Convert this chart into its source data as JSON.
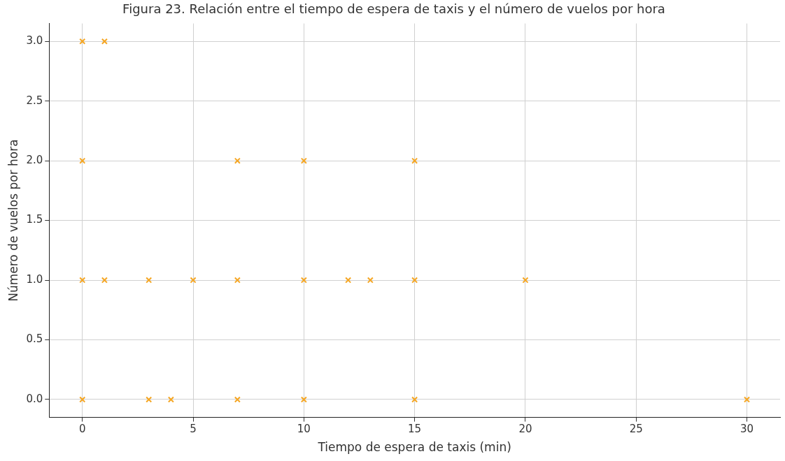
{
  "chart_data": {
    "type": "scatter",
    "title": "Figura 23. Relación entre el tiempo de espera de taxis y el número de vuelos por hora",
    "xlabel": "Tiempo de espera de taxis (min)",
    "ylabel": "Número de vuelos por hora",
    "x": [
      0,
      1,
      0,
      7,
      10,
      15,
      0,
      1,
      3,
      5,
      7,
      10,
      12,
      13,
      15,
      20,
      0,
      3,
      4,
      7,
      10,
      15,
      30
    ],
    "series": [
      {
        "color": "#f5a623",
        "values": [
          3,
          3,
          2,
          2,
          2,
          2,
          1,
          1,
          1,
          1,
          1,
          1,
          1,
          1,
          1,
          1,
          0,
          0,
          0,
          0,
          0,
          0,
          0
        ]
      }
    ],
    "xlim": [
      -1.5,
      31.5
    ],
    "xticks": [
      0,
      5,
      10,
      15,
      20,
      25,
      30
    ],
    "ylim": [
      -0.15,
      3.15
    ],
    "yticks": [
      {
        "value": 0,
        "label": "0.0"
      },
      {
        "value": 0.5,
        "label": "0.5"
      },
      {
        "value": 1,
        "label": "1.0"
      },
      {
        "value": 1.5,
        "label": "1.5"
      },
      {
        "value": 2,
        "label": "2.0"
      },
      {
        "value": 2.5,
        "label": "2.5"
      },
      {
        "value": 3,
        "label": "3.0"
      }
    ],
    "grid": true,
    "legend": false,
    "marker": "cross"
  }
}
